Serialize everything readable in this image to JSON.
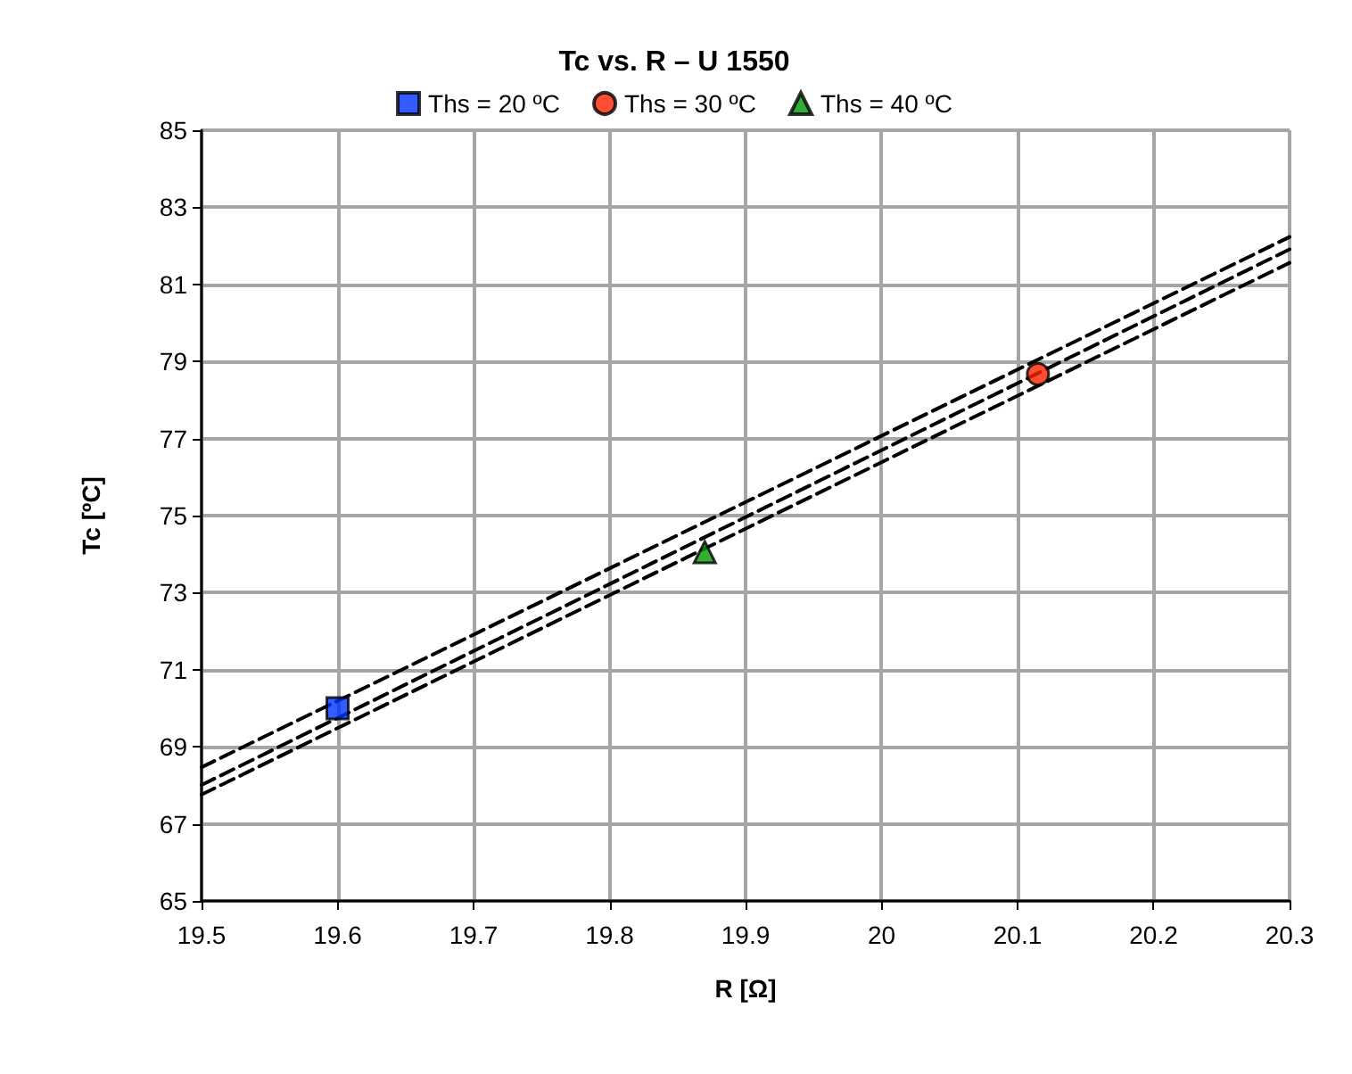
{
  "chart_data": {
    "type": "scatter",
    "title": "Tc vs. R – U 1550",
    "xlabel": "R [Ω]",
    "ylabel": "Tc [ºC]",
    "series": [
      {
        "name": "Ths = 20 ºC",
        "color": "#0033ff",
        "marker": "square",
        "x": [
          19.6
        ],
        "values": [
          70.0
        ]
      },
      {
        "name": "Ths = 30 ºC",
        "color": "#ff2200",
        "marker": "circle",
        "x": [
          20.115
        ],
        "values": [
          78.67
        ]
      },
      {
        "name": "Ths = 40 ºC",
        "color": "#009900",
        "marker": "triangle",
        "x": [
          19.87
        ],
        "values": [
          74.05
        ]
      },
      {
        "type": "line",
        "color": "#000000",
        "line_style": "dashed",
        "marker": "none",
        "x": [
          19.5,
          20.3
        ],
        "values": [
          68.47,
          82.23
        ]
      },
      {
        "type": "line",
        "color": "#000000",
        "line_style": "dashed",
        "marker": "none",
        "x": [
          19.5,
          20.3
        ],
        "values": [
          68.01,
          81.91
        ]
      },
      {
        "type": "line",
        "color": "#000000",
        "line_style": "dashed",
        "marker": "none",
        "x": [
          19.5,
          20.3
        ],
        "values": [
          67.76,
          81.56
        ]
      }
    ],
    "xlim": [
      19.5,
      20.3
    ],
    "xticks": [
      19.5,
      19.6,
      19.7,
      19.8,
      19.9,
      20,
      20.1,
      20.2,
      20.3
    ],
    "ylim": [
      65,
      85
    ],
    "yticks": [
      65,
      67,
      69,
      71,
      73,
      75,
      77,
      79,
      81,
      83,
      85
    ],
    "grid": true,
    "legend": "top"
  }
}
